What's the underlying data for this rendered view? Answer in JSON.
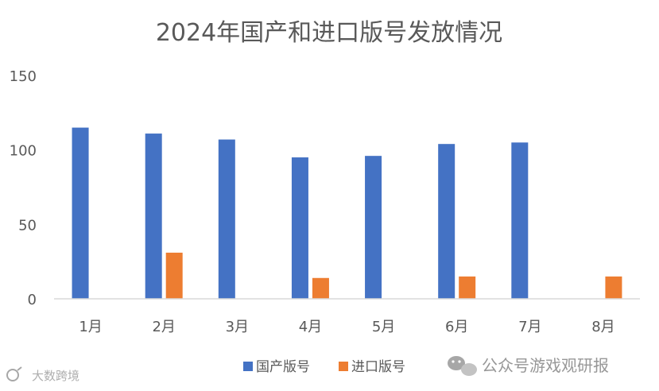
{
  "chart_data": {
    "type": "bar",
    "title": "2024年国产和进口版号发放情况",
    "categories": [
      "1月",
      "2月",
      "3月",
      "4月",
      "5月",
      "6月",
      "7月",
      "8月"
    ],
    "series": [
      {
        "name": "国产版号",
        "color": "#4472C4",
        "values": [
          115,
          111,
          107,
          95,
          96,
          104,
          105,
          0
        ]
      },
      {
        "name": "进口版号",
        "color": "#ED7D31",
        "values": [
          0,
          31,
          0,
          14,
          0,
          15,
          0,
          15
        ]
      }
    ],
    "yticks": [
      "0",
      "50",
      "100",
      "150"
    ],
    "ylim": [
      0,
      150
    ],
    "grid": false,
    "legend": "bottom"
  },
  "watermark": {
    "left_text": "大数跨境",
    "right_text": "公众号游戏观研报"
  }
}
